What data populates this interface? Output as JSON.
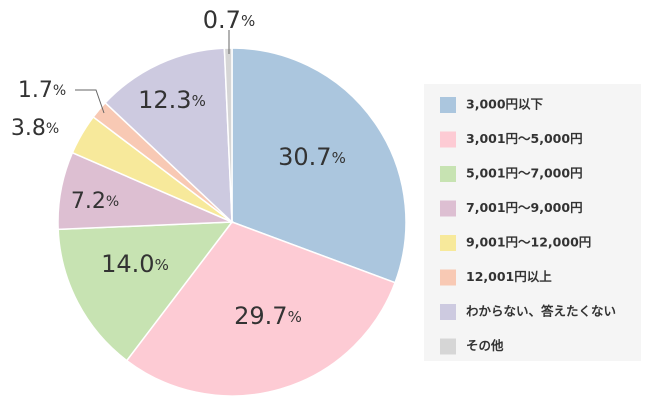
{
  "chart_data": {
    "type": "pie",
    "title": "",
    "start": "top",
    "direction": "clockwise",
    "unit": "%",
    "slices": [
      {
        "name": "3,000円以下",
        "value": 30.7,
        "label": "30.7",
        "color": "#abc6de"
      },
      {
        "name": "3,001円～5,000円",
        "value": 29.7,
        "label": "29.7",
        "color": "#fdcbd4"
      },
      {
        "name": "5,001円～7,000円",
        "value": 14.0,
        "label": "14.0",
        "color": "#c7e3b2"
      },
      {
        "name": "7,001円～9,000円",
        "value": 7.2,
        "label": "7.2",
        "color": "#ddbfd2"
      },
      {
        "name": "9,001円～12,000円",
        "value": 3.8,
        "label": "3.8",
        "color": "#f7e99b"
      },
      {
        "name": "12,001円以上",
        "value": 1.7,
        "label": "1.7",
        "color": "#f8c9b4"
      },
      {
        "name": "わからない、答えたくない",
        "value": 12.3,
        "label": "12.3",
        "color": "#cdcae0"
      },
      {
        "name": "その他",
        "value": 0.7,
        "label": "0.7",
        "color": "#d6d6d6"
      }
    ],
    "legend": {
      "position": "right"
    }
  }
}
